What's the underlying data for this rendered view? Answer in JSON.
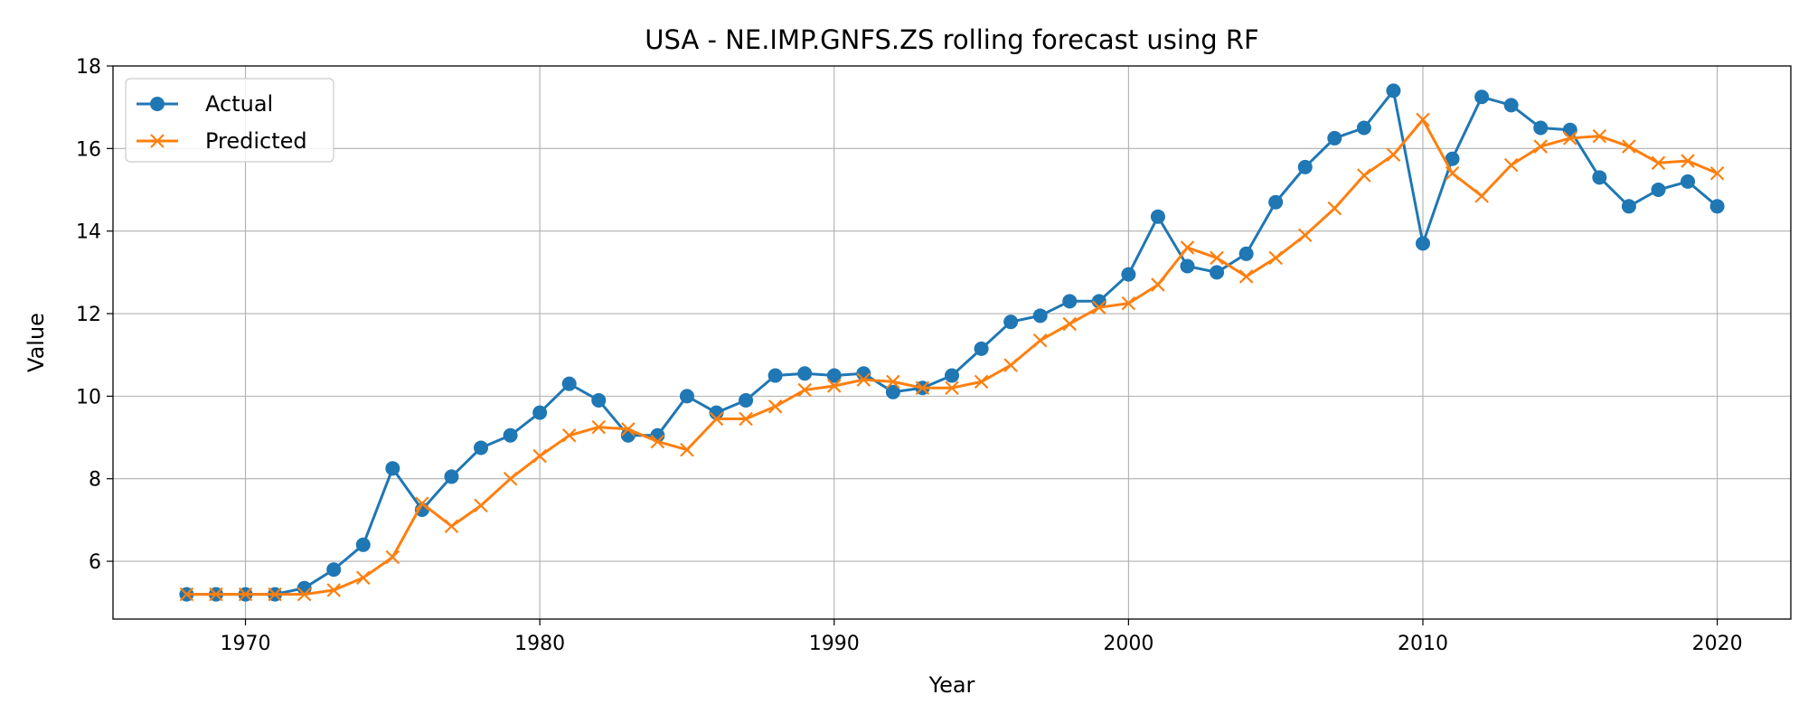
{
  "chart_data": {
    "type": "line",
    "title": "USA - NE.IMP.GNFS.ZS rolling forecast using RF",
    "xlabel": "Year",
    "ylabel": "Value",
    "xlim": [
      1965.5,
      2022.5
    ],
    "ylim": [
      4.6,
      18
    ],
    "xticks": [
      1970,
      1980,
      1990,
      2000,
      2010,
      2020
    ],
    "yticks": [
      6,
      8,
      10,
      12,
      14,
      16,
      18
    ],
    "grid": true,
    "legend_position": "top-left",
    "x": [
      1968,
      1969,
      1970,
      1971,
      1972,
      1973,
      1974,
      1975,
      1976,
      1977,
      1978,
      1979,
      1980,
      1981,
      1982,
      1983,
      1984,
      1985,
      1986,
      1987,
      1988,
      1989,
      1990,
      1991,
      1992,
      1993,
      1994,
      1995,
      1996,
      1997,
      1998,
      1999,
      2000,
      2001,
      2002,
      2003,
      2004,
      2005,
      2006,
      2007,
      2008,
      2009,
      2010,
      2011,
      2012,
      2013,
      2014,
      2015,
      2016,
      2017,
      2018,
      2019,
      2020
    ],
    "series": [
      {
        "name": "Actual",
        "color": "#1f77b4",
        "marker": "circle",
        "values": [
          5.2,
          5.2,
          5.2,
          5.2,
          5.35,
          5.8,
          6.4,
          8.25,
          7.25,
          8.05,
          8.75,
          9.05,
          9.6,
          10.3,
          9.9,
          9.05,
          9.05,
          10.0,
          9.6,
          9.9,
          10.5,
          10.55,
          10.5,
          10.55,
          10.1,
          10.2,
          10.5,
          11.15,
          11.8,
          11.95,
          12.3,
          12.3,
          12.95,
          14.35,
          13.15,
          13.0,
          13.45,
          14.7,
          15.55,
          16.25,
          16.5,
          17.4,
          13.7,
          15.75,
          17.25,
          17.05,
          16.5,
          16.45,
          15.3,
          14.6,
          15.0,
          15.2,
          14.6
        ]
      },
      {
        "name": "Predicted",
        "color": "#ff7f0e",
        "marker": "x",
        "values": [
          5.2,
          5.2,
          5.2,
          5.2,
          5.2,
          5.3,
          5.6,
          6.1,
          7.4,
          6.85,
          7.35,
          8.0,
          8.55,
          9.05,
          9.25,
          9.2,
          8.9,
          8.7,
          9.45,
          9.45,
          9.75,
          10.15,
          10.25,
          10.4,
          10.35,
          10.2,
          10.2,
          10.35,
          10.75,
          11.35,
          11.75,
          12.15,
          12.25,
          12.7,
          13.6,
          13.35,
          12.9,
          13.35,
          13.9,
          14.55,
          15.35,
          15.85,
          16.7,
          15.4,
          14.85,
          15.6,
          16.05,
          16.25,
          16.3,
          16.05,
          15.65,
          15.7,
          15.4
        ]
      }
    ]
  }
}
